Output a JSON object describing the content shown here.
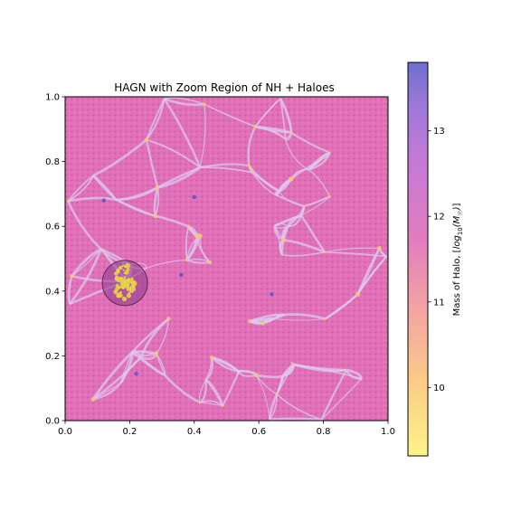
{
  "chart_data": [
    {
      "type": "scatter",
      "title": "HAGN with Zoom Region of NH + Haloes",
      "xlabel": "",
      "ylabel": "",
      "xlim": [
        0.0,
        1.0
      ],
      "ylim": [
        0.0,
        1.0
      ],
      "xticks": [
        "0.0",
        "0.2",
        "0.4",
        "0.6",
        "0.8",
        "1.0"
      ],
      "yticks": [
        "0.0",
        "0.2",
        "0.4",
        "0.6",
        "0.8",
        "1.0"
      ],
      "grid": false,
      "background": "density map of cosmic web (pink with light filaments)",
      "zoom_region": {
        "x": 0.185,
        "y": 0.425,
        "r": 0.07,
        "color": "#8b3a8b"
      },
      "highlighted_haloes": [
        {
          "x": 0.12,
          "y": 0.68,
          "mass": 13.2
        },
        {
          "x": 0.4,
          "y": 0.69,
          "mass": 13.0
        },
        {
          "x": 0.36,
          "y": 0.45,
          "mass": 12.8
        },
        {
          "x": 0.64,
          "y": 0.39,
          "mass": 13.2
        },
        {
          "x": 0.22,
          "y": 0.145,
          "mass": 13.1
        }
      ],
      "colorbar": {
        "label": "Mass of Halo, [log10(M☉)]",
        "label_prefix": "Mass of Halo, [",
        "label_log": "log",
        "label_sub": "10",
        "label_m": "M",
        "label_sun": "☉",
        "label_suffix": "]",
        "range": [
          9.2,
          13.8
        ],
        "ticks": [
          "10",
          "11",
          "12",
          "13"
        ],
        "colormap": "plasma_r (yellow to purple)"
      }
    }
  ]
}
